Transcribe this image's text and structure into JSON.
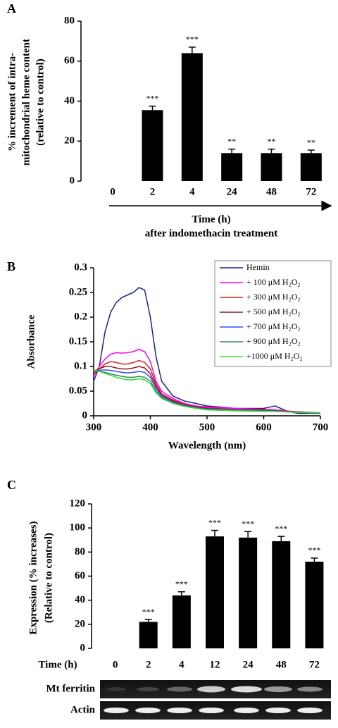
{
  "chart_data": [
    {
      "type": "bar",
      "panel": "A",
      "y_label": [
        "% increment of intra-",
        "mitochondrial heme content",
        "(relative to control)"
      ],
      "x_label": [
        "Time (h)",
        "after indomethacin treatment"
      ],
      "categories": [
        "0",
        "2",
        "4",
        "24",
        "48",
        "72"
      ],
      "values": [
        0,
        35.5,
        64,
        14,
        14,
        14
      ],
      "errors": [
        0,
        2,
        3,
        2,
        2,
        1.5
      ],
      "value_labels": [
        null,
        "***",
        "***",
        "**",
        "**",
        "**"
      ],
      "color": "#000000",
      "ylim": [
        0,
        80
      ],
      "yticks": [
        0,
        20,
        40,
        60,
        80
      ]
    },
    {
      "type": "line",
      "panel": "B",
      "y_label": [
        "Absorbance"
      ],
      "x_label": [
        "Wavelength (nm)"
      ],
      "x": [
        300,
        310,
        320,
        330,
        340,
        350,
        360,
        370,
        380,
        390,
        400,
        410,
        420,
        440,
        460,
        480,
        500,
        550,
        600,
        620,
        640,
        660,
        700
      ],
      "series": [
        {
          "name": "Hemin",
          "color": "#1f1f8f",
          "values": [
            0.07,
            0.1,
            0.17,
            0.21,
            0.23,
            0.24,
            0.245,
            0.25,
            0.26,
            0.255,
            0.2,
            0.12,
            0.07,
            0.04,
            0.03,
            0.025,
            0.02,
            0.015,
            0.015,
            0.02,
            0.01,
            0.005,
            0.005
          ]
        },
        {
          "name": "+ 100 μM H₂O₂",
          "color": "#ff00ff",
          "values": [
            0.08,
            0.1,
            0.115,
            0.125,
            0.128,
            0.127,
            0.128,
            0.13,
            0.135,
            0.13,
            0.11,
            0.07,
            0.05,
            0.035,
            0.025,
            0.02,
            0.018,
            0.015,
            0.013,
            0.012,
            0.01,
            0.008,
            0.006
          ]
        },
        {
          "name": "+ 300 μM H₂O₂",
          "color": "#e02020",
          "values": [
            0.085,
            0.095,
            0.105,
            0.11,
            0.108,
            0.105,
            0.105,
            0.108,
            0.112,
            0.108,
            0.095,
            0.065,
            0.045,
            0.032,
            0.024,
            0.019,
            0.016,
            0.013,
            0.012,
            0.011,
            0.009,
            0.008,
            0.006
          ]
        },
        {
          "name": "+ 500 μM H₂O₂",
          "color": "#8b1a1a",
          "values": [
            0.09,
            0.095,
            0.1,
            0.1,
            0.097,
            0.095,
            0.095,
            0.097,
            0.1,
            0.097,
            0.085,
            0.06,
            0.042,
            0.03,
            0.022,
            0.018,
            0.015,
            0.012,
            0.011,
            0.01,
            0.009,
            0.008,
            0.006
          ]
        },
        {
          "name": "+ 700 μM H₂O₂",
          "color": "#3050ff",
          "values": [
            0.09,
            0.092,
            0.093,
            0.092,
            0.09,
            0.088,
            0.087,
            0.088,
            0.09,
            0.088,
            0.078,
            0.055,
            0.04,
            0.028,
            0.021,
            0.017,
            0.014,
            0.012,
            0.01,
            0.01,
            0.008,
            0.007,
            0.006
          ]
        },
        {
          "name": "+ 900 μM H₂O₂",
          "color": "#2e8b57",
          "values": [
            0.092,
            0.09,
            0.088,
            0.085,
            0.082,
            0.08,
            0.078,
            0.078,
            0.08,
            0.078,
            0.07,
            0.05,
            0.037,
            0.026,
            0.02,
            0.016,
            0.013,
            0.011,
            0.01,
            0.009,
            0.008,
            0.007,
            0.006
          ]
        },
        {
          "name": "+1000 μM H₂O₂",
          "color": "#33dd33",
          "values": [
            0.093,
            0.09,
            0.086,
            0.082,
            0.078,
            0.075,
            0.073,
            0.073,
            0.075,
            0.073,
            0.065,
            0.047,
            0.035,
            0.025,
            0.019,
            0.015,
            0.012,
            0.01,
            0.009,
            0.009,
            0.008,
            0.007,
            0.006
          ]
        }
      ],
      "xlim": [
        300,
        700
      ],
      "xticks": [
        300,
        400,
        500,
        600,
        700
      ],
      "ylim": [
        0,
        0.3
      ],
      "yticks": [
        0,
        0.05,
        0.1,
        0.15,
        0.2,
        0.25,
        0.3
      ]
    },
    {
      "type": "bar",
      "panel": "C",
      "y_label": [
        "Expression (% increases)",
        "(Relative to control)"
      ],
      "x_label": [
        "Time (h)"
      ],
      "categories": [
        "0",
        "2",
        "4",
        "12",
        "24",
        "48",
        "72"
      ],
      "values": [
        0,
        22,
        44,
        93,
        92,
        89,
        72
      ],
      "errors": [
        0,
        2,
        3,
        5,
        5,
        4,
        3
      ],
      "value_labels": [
        null,
        "***",
        "***",
        "***",
        "***",
        "***",
        "***"
      ],
      "color": "#000000",
      "ylim": [
        0,
        120
      ],
      "yticks": [
        0,
        20,
        40,
        60,
        80,
        100,
        120
      ],
      "row_labels": [
        "Mt ferritin",
        "Actin"
      ]
    }
  ]
}
